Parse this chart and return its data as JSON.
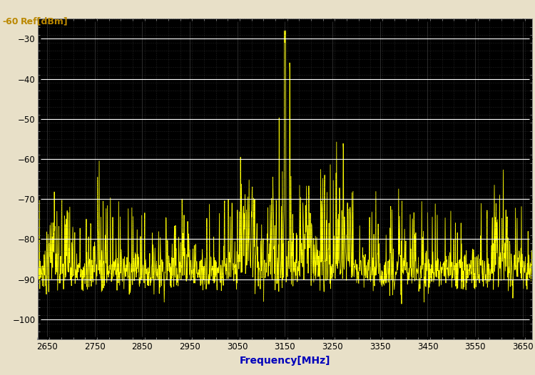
{
  "xlabel": "Frequency[MHz]",
  "ylabel": "Ref[dBm]",
  "ref_label": "-60",
  "xmin": 2630,
  "xmax": 3670,
  "ymin": -105,
  "ymax": -25,
  "yticks": [
    -30,
    -40,
    -50,
    -60,
    -70,
    -80,
    -90,
    -100
  ],
  "xticks": [
    2650,
    2750,
    2850,
    2950,
    3050,
    3150,
    3250,
    3350,
    3450,
    3550,
    3650
  ],
  "background_color": "#000000",
  "figure_bg": "#e8e0c8",
  "line_color": "#ffff00",
  "grid_major_color": "#ffffff",
  "grid_minor_color": "#444444",
  "xlabel_color": "#0000bb",
  "ylabel_color": "#bb8800",
  "tick_label_color": "#000000",
  "peak_freq": 3150,
  "peak_level": -29
}
